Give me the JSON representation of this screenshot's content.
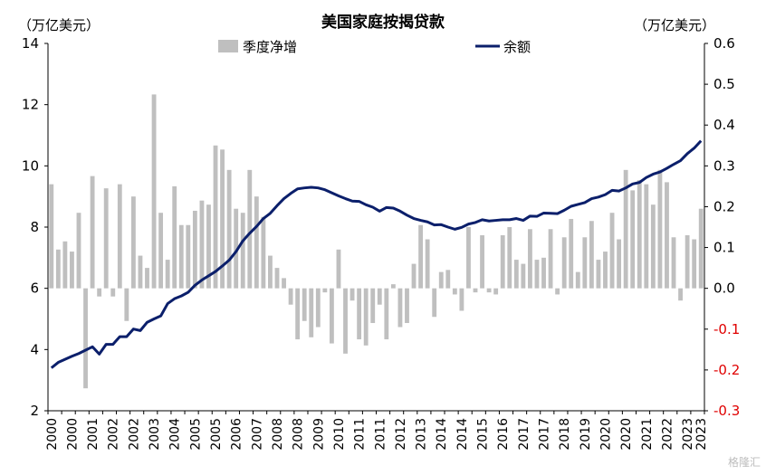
{
  "chart_data": {
    "type": "bar+line",
    "title": "美国家庭按揭贷款",
    "ylabel_left": "（万亿美元）",
    "ylabel_right": "（万亿美元）",
    "legend": {
      "placement": "top-center",
      "items": [
        "季度净增",
        "余额"
      ]
    },
    "colors": {
      "bars": "#bfbfbf",
      "line": "#0b1f6b",
      "negative_tick": "#e00000",
      "axis": "#000000"
    },
    "x_tick_labels": [
      "2000",
      "2000",
      "2001",
      "2002",
      "2002",
      "2003",
      "2004",
      "2005",
      "2005",
      "2006",
      "2007",
      "2008",
      "2008",
      "2009",
      "2010",
      "2011",
      "2011",
      "2012",
      "2013",
      "2014",
      "2014",
      "2015",
      "2016",
      "2017",
      "2017",
      "2018",
      "2019",
      "2020",
      "2020",
      "2021",
      "2022",
      "2023",
      "2023"
    ],
    "ylim_left": [
      2,
      14
    ],
    "yticks_left": [
      "2",
      "4",
      "6",
      "8",
      "10",
      "12",
      "14"
    ],
    "ylim_right": [
      -0.3,
      0.6
    ],
    "yticks_right": [
      "-0.3",
      "-0.2",
      "-0.1",
      "0.0",
      "0.1",
      "0.2",
      "0.3",
      "0.4",
      "0.5",
      "0.6"
    ],
    "quarters": {
      "start_year": 2000,
      "start_quarter": 1,
      "end_year": 2023,
      "end_quarter": 2
    },
    "series": [
      {
        "name": "季度净增",
        "type": "bar",
        "axis": "right",
        "values": [
          0.255,
          0.095,
          0.115,
          0.09,
          0.185,
          -0.245,
          0.275,
          -0.02,
          0.245,
          -0.02,
          0.255,
          -0.08,
          0.225,
          0.08,
          0.05,
          0.475,
          0.185,
          0.07,
          0.25,
          0.155,
          0.155,
          0.19,
          0.215,
          0.205,
          0.35,
          0.34,
          0.29,
          0.195,
          0.185,
          0.29,
          0.225,
          0.175,
          0.08,
          0.05,
          0.025,
          -0.04,
          -0.125,
          -0.08,
          -0.12,
          -0.095,
          -0.01,
          -0.135,
          0.095,
          -0.16,
          -0.03,
          -0.125,
          -0.14,
          -0.085,
          -0.04,
          -0.125,
          0.01,
          -0.095,
          -0.085,
          0.06,
          0.155,
          0.12,
          -0.07,
          0.04,
          0.045,
          -0.015,
          -0.055,
          0.15,
          -0.01,
          0.13,
          -0.01,
          -0.015,
          0.13,
          0.15,
          0.07,
          0.06,
          0.145,
          0.07,
          0.075,
          0.145,
          -0.015,
          0.125,
          0.17,
          0.04,
          0.125,
          0.165,
          0.07,
          0.09,
          0.185,
          0.12,
          0.29,
          0.24,
          0.265,
          0.255,
          0.205,
          0.29,
          0.26,
          0.125,
          -0.03,
          0.13,
          0.12,
          0.195
        ]
      },
      {
        "name": "余额",
        "type": "line",
        "axis": "left",
        "values": [
          3.4,
          3.58,
          3.68,
          3.78,
          3.87,
          3.98,
          4.09,
          3.85,
          4.17,
          4.17,
          4.42,
          4.42,
          4.67,
          4.62,
          4.89,
          5.0,
          5.1,
          5.5,
          5.66,
          5.75,
          5.87,
          6.1,
          6.27,
          6.41,
          6.55,
          6.73,
          6.92,
          7.2,
          7.55,
          7.8,
          8.02,
          8.28,
          8.45,
          8.7,
          8.93,
          9.1,
          9.25,
          9.28,
          9.3,
          9.28,
          9.22,
          9.12,
          9.02,
          8.93,
          8.85,
          8.84,
          8.73,
          8.65,
          8.52,
          8.64,
          8.62,
          8.52,
          8.39,
          8.28,
          8.22,
          8.17,
          8.07,
          8.08,
          8.0,
          7.93,
          7.99,
          8.1,
          8.15,
          8.24,
          8.2,
          8.22,
          8.24,
          8.24,
          8.28,
          8.22,
          8.36,
          8.35,
          8.46,
          8.45,
          8.44,
          8.55,
          8.68,
          8.74,
          8.8,
          8.93,
          8.98,
          9.06,
          9.2,
          9.18,
          9.28,
          9.41,
          9.46,
          9.62,
          9.73,
          9.8,
          9.92,
          10.05,
          10.17,
          10.4,
          10.58,
          10.82
        ]
      }
    ]
  },
  "watermark": "格隆汇"
}
